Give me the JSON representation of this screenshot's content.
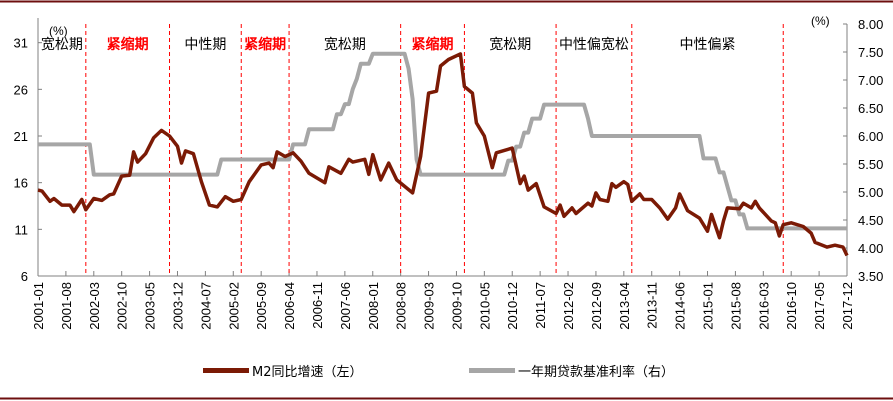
{
  "colors": {
    "m2": "#7b1a05",
    "rate": "#a6a6a6",
    "divider": "#ff0000",
    "border": "#6e0f0f",
    "axis": "#808080",
    "tight_label": "#ff0000",
    "other_label": "#000000"
  },
  "chart_data": {
    "type": "line",
    "title": "",
    "left_axis": {
      "unit": "(%)",
      "ticks": [
        "6",
        "11",
        "16",
        "21",
        "26",
        "31"
      ],
      "ylim": [
        6,
        33
      ]
    },
    "right_axis": {
      "unit": "(%)",
      "ticks": [
        "3.50",
        "4.00",
        "4.50",
        "5.00",
        "5.50",
        "6.00",
        "6.50",
        "7.00",
        "7.50",
        "8.00"
      ],
      "ylim": [
        3.5,
        8.0
      ]
    },
    "x_range": [
      "2001-01",
      "2017-12"
    ],
    "x_tick_labels": [
      "2001-01",
      "2001-08",
      "2002-03",
      "2002-10",
      "2003-05",
      "2003-12",
      "2004-07",
      "2005-02",
      "2005-09",
      "2006-04",
      "2006-11",
      "2007-06",
      "2008-01",
      "2008-08",
      "2009-03",
      "2009-10",
      "2010-05",
      "2010-12",
      "2011-07",
      "2012-02",
      "2012-09",
      "2013-04",
      "2013-11",
      "2014-06",
      "2015-01",
      "2015-08",
      "2016-03",
      "2016-10",
      "2017-05",
      "2017-12"
    ],
    "grid": false,
    "legend_placement": "bottom",
    "series": [
      {
        "name": "M2同比增速（左）",
        "axis": "left",
        "points": [
          [
            "2001-01",
            15.2
          ],
          [
            "2001-02",
            15.1
          ],
          [
            "2001-04",
            14.0
          ],
          [
            "2001-05",
            14.3
          ],
          [
            "2001-07",
            13.6
          ],
          [
            "2001-09",
            13.6
          ],
          [
            "2001-10",
            12.9
          ],
          [
            "2001-12",
            14.2
          ],
          [
            "2002-01",
            13.1
          ],
          [
            "2002-03",
            14.3
          ],
          [
            "2002-05",
            14.1
          ],
          [
            "2002-07",
            14.7
          ],
          [
            "2002-08",
            14.8
          ],
          [
            "2002-10",
            16.7
          ],
          [
            "2002-12",
            16.8
          ],
          [
            "2003-01",
            19.3
          ],
          [
            "2003-02",
            18.2
          ],
          [
            "2003-04",
            19.1
          ],
          [
            "2003-06",
            20.8
          ],
          [
            "2003-08",
            21.6
          ],
          [
            "2003-10",
            21.0
          ],
          [
            "2003-12",
            19.9
          ],
          [
            "2004-01",
            18.1
          ],
          [
            "2004-02",
            19.4
          ],
          [
            "2004-04",
            19.1
          ],
          [
            "2004-06",
            16.1
          ],
          [
            "2004-08",
            13.6
          ],
          [
            "2004-10",
            13.4
          ],
          [
            "2004-12",
            14.5
          ],
          [
            "2005-02",
            14.0
          ],
          [
            "2005-04",
            14.2
          ],
          [
            "2005-06",
            16.1
          ],
          [
            "2005-09",
            17.9
          ],
          [
            "2005-11",
            18.1
          ],
          [
            "2005-12",
            17.6
          ],
          [
            "2006-01",
            19.3
          ],
          [
            "2006-03",
            18.8
          ],
          [
            "2006-05",
            19.2
          ],
          [
            "2006-07",
            18.3
          ],
          [
            "2006-09",
            17.0
          ],
          [
            "2007-01",
            16.0
          ],
          [
            "2007-02",
            17.7
          ],
          [
            "2007-05",
            17.0
          ],
          [
            "2007-07",
            18.5
          ],
          [
            "2007-08",
            18.2
          ],
          [
            "2007-11",
            18.5
          ],
          [
            "2007-12",
            16.9
          ],
          [
            "2008-01",
            19.0
          ],
          [
            "2008-03",
            16.3
          ],
          [
            "2008-05",
            18.1
          ],
          [
            "2008-07",
            16.3
          ],
          [
            "2008-11",
            14.9
          ],
          [
            "2009-01",
            18.8
          ],
          [
            "2009-03",
            25.6
          ],
          [
            "2009-05",
            25.8
          ],
          [
            "2009-06",
            28.5
          ],
          [
            "2009-08",
            29.2
          ],
          [
            "2009-11",
            29.8
          ],
          [
            "2009-12",
            26.3
          ],
          [
            "2010-02",
            25.6
          ],
          [
            "2010-03",
            22.4
          ],
          [
            "2010-05",
            21.0
          ],
          [
            "2010-07",
            17.6
          ],
          [
            "2010-08",
            19.2
          ],
          [
            "2010-12",
            19.7
          ],
          [
            "2011-02",
            15.9
          ],
          [
            "2011-03",
            16.7
          ],
          [
            "2011-04",
            15.2
          ],
          [
            "2011-06",
            15.9
          ],
          [
            "2011-08",
            13.4
          ],
          [
            "2011-11",
            12.7
          ],
          [
            "2011-12",
            13.6
          ],
          [
            "2012-01",
            12.4
          ],
          [
            "2012-03",
            13.3
          ],
          [
            "2012-04",
            12.7
          ],
          [
            "2012-07",
            13.8
          ],
          [
            "2012-08",
            13.5
          ],
          [
            "2012-09",
            14.9
          ],
          [
            "2012-10",
            14.2
          ],
          [
            "2012-12",
            14.0
          ],
          [
            "2013-01",
            15.9
          ],
          [
            "2013-02",
            15.5
          ],
          [
            "2013-04",
            16.1
          ],
          [
            "2013-05",
            15.8
          ],
          [
            "2013-06",
            14.0
          ],
          [
            "2013-08",
            14.8
          ],
          [
            "2013-09",
            14.2
          ],
          [
            "2013-11",
            14.2
          ],
          [
            "2014-01",
            13.3
          ],
          [
            "2014-03",
            12.1
          ],
          [
            "2014-05",
            13.3
          ],
          [
            "2014-06",
            14.8
          ],
          [
            "2014-08",
            13.0
          ],
          [
            "2014-11",
            12.2
          ],
          [
            "2015-01",
            10.8
          ],
          [
            "2015-02",
            12.6
          ],
          [
            "2015-04",
            10.1
          ],
          [
            "2015-05",
            11.9
          ],
          [
            "2015-06",
            13.3
          ],
          [
            "2015-09",
            13.2
          ],
          [
            "2015-10",
            13.8
          ],
          [
            "2015-12",
            13.3
          ],
          [
            "2016-01",
            14.0
          ],
          [
            "2016-02",
            13.3
          ],
          [
            "2016-05",
            11.9
          ],
          [
            "2016-06",
            11.7
          ],
          [
            "2016-07",
            10.3
          ],
          [
            "2016-08",
            11.5
          ],
          [
            "2016-10",
            11.7
          ],
          [
            "2017-01",
            11.3
          ],
          [
            "2017-03",
            10.6
          ],
          [
            "2017-04",
            9.6
          ],
          [
            "2017-07",
            9.1
          ],
          [
            "2017-09",
            9.3
          ],
          [
            "2017-11",
            9.1
          ],
          [
            "2017-12",
            8.2
          ]
        ]
      },
      {
        "name": "一年期贷款基准利率（右）",
        "axis": "right",
        "steps": [
          [
            "2001-01",
            5.85
          ],
          [
            "2002-03",
            5.31
          ],
          [
            "2004-11",
            5.58
          ],
          [
            "2006-05",
            5.85
          ],
          [
            "2006-09",
            6.12
          ],
          [
            "2007-04",
            6.39
          ],
          [
            "2007-06",
            6.57
          ],
          [
            "2007-08",
            6.84
          ],
          [
            "2007-09",
            7.02
          ],
          [
            "2007-10",
            7.29
          ],
          [
            "2008-01",
            7.47
          ],
          [
            "2008-10",
            7.2
          ],
          [
            "2008-11",
            6.66
          ],
          [
            "2008-12",
            5.58
          ],
          [
            "2009-01",
            5.31
          ],
          [
            "2010-11",
            5.56
          ],
          [
            "2011-01",
            5.81
          ],
          [
            "2011-03",
            6.06
          ],
          [
            "2011-05",
            6.31
          ],
          [
            "2011-08",
            6.56
          ],
          [
            "2012-07",
            6.31
          ],
          [
            "2012-08",
            6.0
          ],
          [
            "2014-12",
            5.6
          ],
          [
            "2015-04",
            5.35
          ],
          [
            "2015-06",
            5.1
          ],
          [
            "2015-07",
            4.85
          ],
          [
            "2015-09",
            4.6
          ],
          [
            "2015-11",
            4.35
          ],
          [
            "2017-12",
            4.35
          ]
        ]
      }
    ],
    "periods": [
      {
        "label": "宽松期",
        "start": "2001-01",
        "end": "2002-01",
        "type": "loose"
      },
      {
        "label": "紧缩期",
        "start": "2002-01",
        "end": "2003-10",
        "type": "tight"
      },
      {
        "label": "中性期",
        "start": "2003-10",
        "end": "2005-04",
        "type": "neutral"
      },
      {
        "label": "紧缩期",
        "start": "2005-04",
        "end": "2006-04",
        "type": "tight"
      },
      {
        "label": "宽松期",
        "start": "2006-04",
        "end": "2008-08",
        "type": "loose"
      },
      {
        "label": "紧缩期",
        "start": "2008-08",
        "end": "2009-12",
        "type": "tight"
      },
      {
        "label": "宽松期",
        "start": "2009-12",
        "end": "2011-11",
        "type": "loose"
      },
      {
        "label": "中性偏宽松",
        "start": "2011-11",
        "end": "2013-06",
        "type": "neutral"
      },
      {
        "label": "中性偏紧",
        "start": "2013-06",
        "end": "2016-08",
        "type": "neutral"
      }
    ],
    "dividers": [
      "2002-01",
      "2003-10",
      "2005-04",
      "2006-04",
      "2008-08",
      "2009-12",
      "2011-11",
      "2013-06",
      "2016-08"
    ]
  },
  "legend": {
    "m2": "M2同比增速（左）",
    "rate": "一年期贷款基准利率（右）"
  }
}
